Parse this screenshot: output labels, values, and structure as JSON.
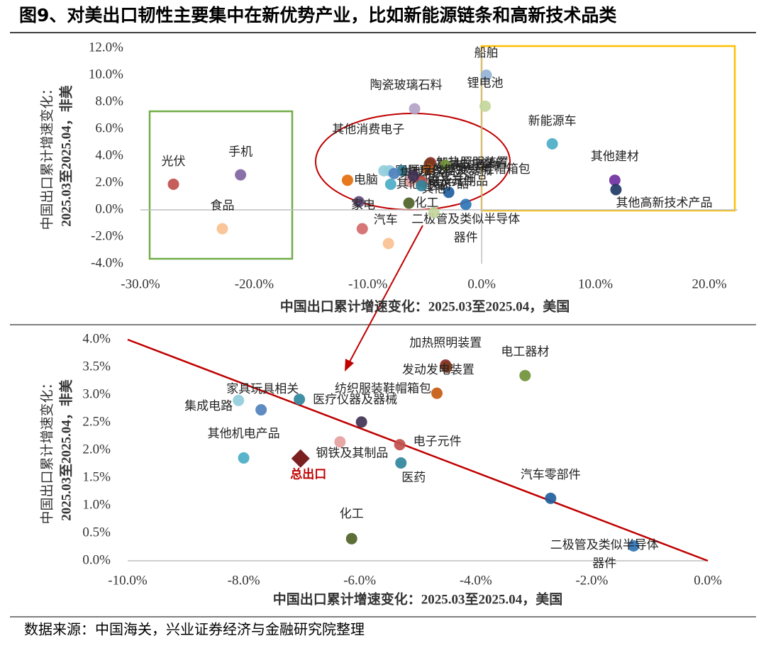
{
  "title": "图9、对美出口韧性主要集中在新优势产业，比如新能源链条和高新技术品类",
  "source": "数据来源：中国海关，兴业证券经济与金融研究院整理",
  "chart_data": [
    {
      "type": "scatter",
      "xlabel": "中国出口累计增速变化：2025.03至2025.04，美国",
      "ylabel": [
        "中国出口累计增速变化：",
        "2025.03至2025.04，非美"
      ],
      "xlim": [
        -30,
        20
      ],
      "ylim": [
        -4,
        12
      ],
      "xticks": [
        {
          "value": -30,
          "label": "-30.0%"
        },
        {
          "value": -20,
          "label": "-20.0%"
        },
        {
          "value": -10,
          "label": "-10.0%"
        },
        {
          "value": 0,
          "label": "0.0%"
        },
        {
          "value": 10,
          "label": "10.0%"
        },
        {
          "value": 20,
          "label": "20.0%"
        }
      ],
      "yticks": [
        {
          "value": -4,
          "label": "-4.0%"
        },
        {
          "value": -2,
          "label": "-2.0%"
        },
        {
          "value": 0,
          "label": "0.0%"
        },
        {
          "value": 2,
          "label": "2.0%"
        },
        {
          "value": 4,
          "label": "4.0%"
        },
        {
          "value": 6,
          "label": "6.0%"
        },
        {
          "value": 8,
          "label": "8.0%"
        },
        {
          "value": 10,
          "label": "10.0%"
        },
        {
          "value": 12,
          "label": "12.0%"
        }
      ],
      "points": [
        {
          "label": "光伏",
          "x": -27.1,
          "y": 1.9,
          "color": "#c0504d"
        },
        {
          "label": "手机",
          "x": -21.2,
          "y": 2.6,
          "color": "#8064a2"
        },
        {
          "label": "食品",
          "x": -22.8,
          "y": -1.4,
          "color": "#fac090"
        },
        {
          "label": "船舶",
          "x": 0.4,
          "y": 10.0,
          "color": "#95b3d7"
        },
        {
          "label": "锂电池",
          "x": 0.3,
          "y": 7.7,
          "color": "#c3d69b"
        },
        {
          "label": "陶瓷玻璃石料",
          "x": -5.9,
          "y": 7.5,
          "color": "#b3a2c7"
        },
        {
          "label": "新能源车",
          "x": 6.2,
          "y": 4.9,
          "color": "#4bacc6"
        },
        {
          "label": "其他建材",
          "x": 11.7,
          "y": 2.2,
          "color": "#7030a0"
        },
        {
          "label": "其他高新技术产品",
          "x": 11.8,
          "y": 1.5,
          "color": "#1f3864"
        },
        {
          "label": "其他",
          "x": -2.9,
          "y": 1.3,
          "color": "#1f5fa0"
        },
        {
          "label": "家电",
          "x": -10.8,
          "y": 0.6,
          "color": "#604a7b"
        },
        {
          "label": "电脑",
          "x": -11.8,
          "y": 2.2,
          "color": "#e46c0a"
        },
        {
          "label": "汽车",
          "x": -10.5,
          "y": -1.4,
          "color": "#d46a6a"
        },
        {
          "label": [
            "二极管及类似半导体",
            "器件"
          ],
          "x": -1.4,
          "y": 0.4,
          "color": "#2e75b6"
        },
        {
          "x": -8.2,
          "y": -2.5,
          "color": "#fac090"
        },
        {
          "x": -4.2,
          "y": -0.2,
          "color": "#c3d69b"
        },
        {
          "label": "其他消费电子",
          "x": -8.6,
          "y": 2.9,
          "color": "#93cddd"
        },
        {
          "label": "加热照明装置",
          "x": -4.5,
          "y": 3.5,
          "color": "#8b2a2a"
        },
        {
          "label": "发动发电装置",
          "x": -4.6,
          "y": 3.4,
          "color": "#7b3b1e"
        },
        {
          "label": "纺织服装鞋帽箱包",
          "x": -4.7,
          "y": 3.0,
          "color": "#c55a11"
        },
        {
          "label": "电工器材",
          "x": -3.2,
          "y": 3.3,
          "color": "#70933a"
        },
        {
          "label": "家具玩具相关",
          "x": -8.1,
          "y": 2.9,
          "color": "#92cddc"
        },
        {
          "label": "医疗仪器及器械",
          "x": -7.0,
          "y": 2.9,
          "color": "#31859c"
        },
        {
          "label": "集成电路",
          "x": -7.7,
          "y": 2.7,
          "color": "#4f81bd"
        },
        {
          "label": "钢铁及其制品",
          "x": -6.3,
          "y": 2.1,
          "color": "#e6a0a0"
        },
        {
          "label": "其他机电产品",
          "x": -8.0,
          "y": 1.9,
          "color": "#4bacc6"
        },
        {
          "label": "电子元件",
          "x": -5.3,
          "y": 2.1,
          "color": "#c0504d"
        },
        {
          "label": "医药",
          "x": -5.3,
          "y": 1.8,
          "color": "#31859c"
        },
        {
          "label": "化工",
          "x": -6.4,
          "y": 0.5,
          "color": "#4f6228"
        },
        {
          "x": -6.0,
          "y": 2.5,
          "color": "#403152"
        }
      ]
    },
    {
      "type": "scatter",
      "xlabel": "中国出口累计增速变化：2025.03至2025.04，美国",
      "ylabel": [
        "中国出口累计增速变化：",
        "2025.03至2025.04，非美"
      ],
      "xlim": [
        -10,
        0
      ],
      "ylim": [
        0,
        4
      ],
      "xticks": [
        {
          "value": -10,
          "label": "-10.0%"
        },
        {
          "value": -8,
          "label": "-8.0%"
        },
        {
          "value": -6,
          "label": "-6.0%"
        },
        {
          "value": -4,
          "label": "-4.0%"
        },
        {
          "value": -2,
          "label": "-2.0%"
        },
        {
          "value": 0,
          "label": "0.0%"
        }
      ],
      "yticks": [
        {
          "value": 0,
          "label": "0.0%"
        },
        {
          "value": 0.5,
          "label": "0.5%"
        },
        {
          "value": 1,
          "label": "1.0%"
        },
        {
          "value": 1.5,
          "label": "1.5%"
        },
        {
          "value": 2,
          "label": "2.0%"
        },
        {
          "value": 2.5,
          "label": "2.5%"
        },
        {
          "value": 3,
          "label": "3.0%"
        },
        {
          "value": 3.5,
          "label": "3.5%"
        },
        {
          "value": 4,
          "label": "4.0%"
        }
      ],
      "reference_line": {
        "x": [
          -10,
          0
        ],
        "y": [
          4,
          0
        ],
        "color": "#c00000"
      },
      "points": [
        {
          "label": "加热照明装置",
          "x": -4.52,
          "y": 3.54,
          "color": "#8b2a2a"
        },
        {
          "label": "发动发电装置",
          "x": -4.5,
          "y": 3.5,
          "color": "#7b3b1e"
        },
        {
          "label": "纺织服装鞋帽箱包",
          "x": -4.67,
          "y": 3.03,
          "color": "#c55a11"
        },
        {
          "label": "电工器材",
          "x": -3.15,
          "y": 3.35,
          "color": "#70933a"
        },
        {
          "label": "家具玩具相关",
          "x": -8.09,
          "y": 2.9,
          "color": "#92cddc"
        },
        {
          "label": "医疗仪器及器械",
          "x": -7.04,
          "y": 2.92,
          "color": "#31859c"
        },
        {
          "label": "集成电路",
          "x": -7.7,
          "y": 2.73,
          "color": "#4f81bd"
        },
        {
          "x": -5.97,
          "y": 2.51,
          "color": "#403152"
        },
        {
          "label": "钢铁及其制品",
          "x": -6.34,
          "y": 2.15,
          "color": "#e6a0a0"
        },
        {
          "label": "其他机电产品",
          "x": -8.0,
          "y": 1.86,
          "color": "#4bacc6"
        },
        {
          "label": "电子元件",
          "x": -5.31,
          "y": 2.1,
          "color": "#c0504d"
        },
        {
          "label": "医药",
          "x": -5.29,
          "y": 1.77,
          "color": "#31859c"
        },
        {
          "label": "汽车零部件",
          "x": -2.71,
          "y": 1.13,
          "color": "#1f5fa0"
        },
        {
          "label": "化工",
          "x": -6.14,
          "y": 0.4,
          "color": "#4f6228"
        },
        {
          "label": [
            "二极管及类似半导体",
            "器件"
          ],
          "x": -1.28,
          "y": 0.27,
          "color": "#2e75b6"
        },
        {
          "label": "总出口",
          "x": -7.02,
          "y": 1.85,
          "color": "#7b2020",
          "marker": "diamond",
          "label_color": "#c00000"
        }
      ]
    }
  ]
}
